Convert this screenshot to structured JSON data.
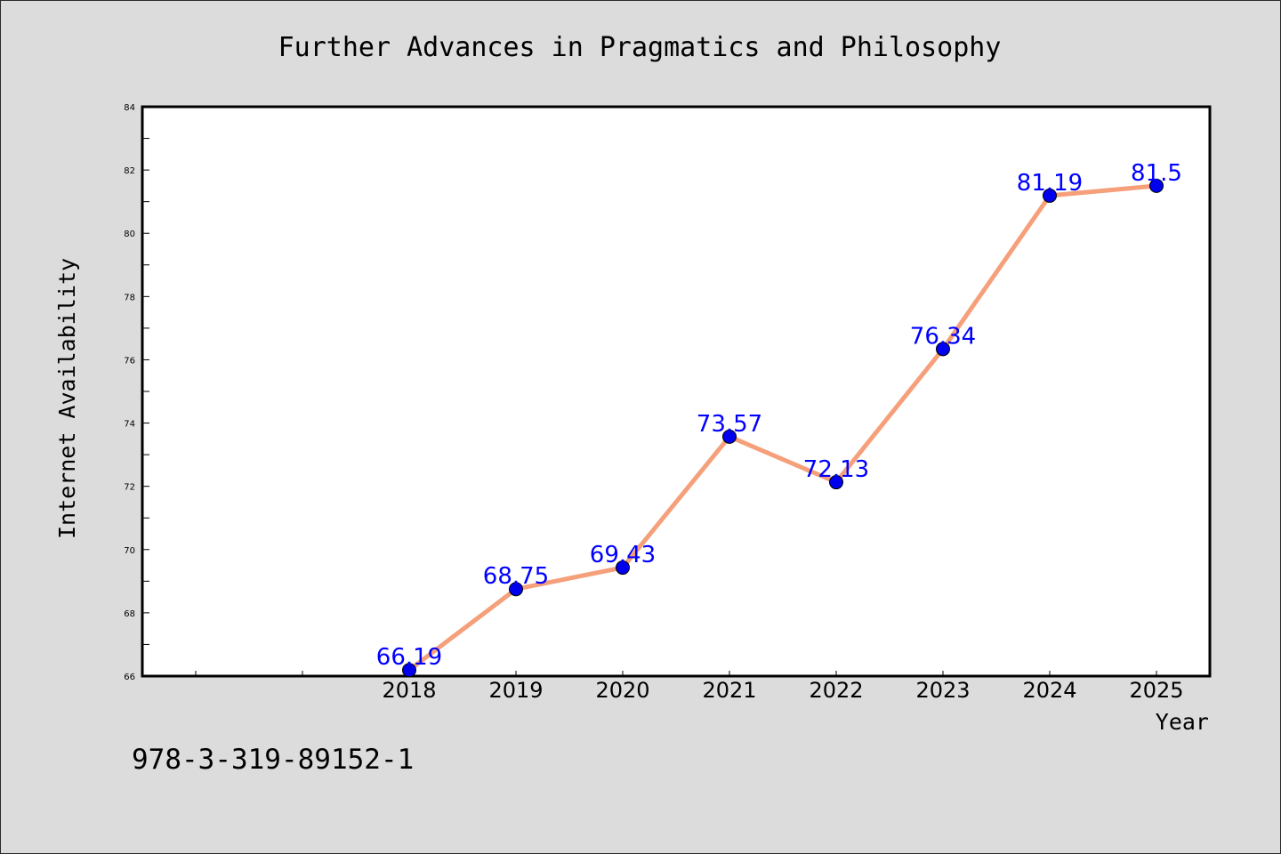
{
  "chart_data": {
    "type": "line",
    "title": "Further Advances in Pragmatics and Philosophy",
    "xlabel": "Year",
    "ylabel": "Internet Availability",
    "x": [
      "2018",
      "2019",
      "2020",
      "2021",
      "2022",
      "2023",
      "2024",
      "2025"
    ],
    "x_range": [
      2015.5,
      2025.5
    ],
    "series": [
      {
        "values": [
          66.19,
          68.75,
          69.43,
          73.57,
          72.13,
          76.34,
          81.19,
          81.5
        ],
        "labels": [
          "66.19",
          "68.75",
          "69.43",
          "73.57",
          "72.13",
          "76.34",
          "81.19",
          "81.5"
        ],
        "line_color": "#f5a07a",
        "marker_color": "#0000ee"
      }
    ],
    "ylim": [
      66,
      84
    ],
    "yticks": [
      "66",
      "68",
      "70",
      "72",
      "74",
      "76",
      "78",
      "80",
      "82",
      "84"
    ],
    "grid": false,
    "legend": "none"
  },
  "footer_text": "978-3-319-89152-1",
  "colors": {
    "background": "#dcdcdc",
    "plot_background": "#ffffff",
    "data_label": "#0000ff"
  }
}
